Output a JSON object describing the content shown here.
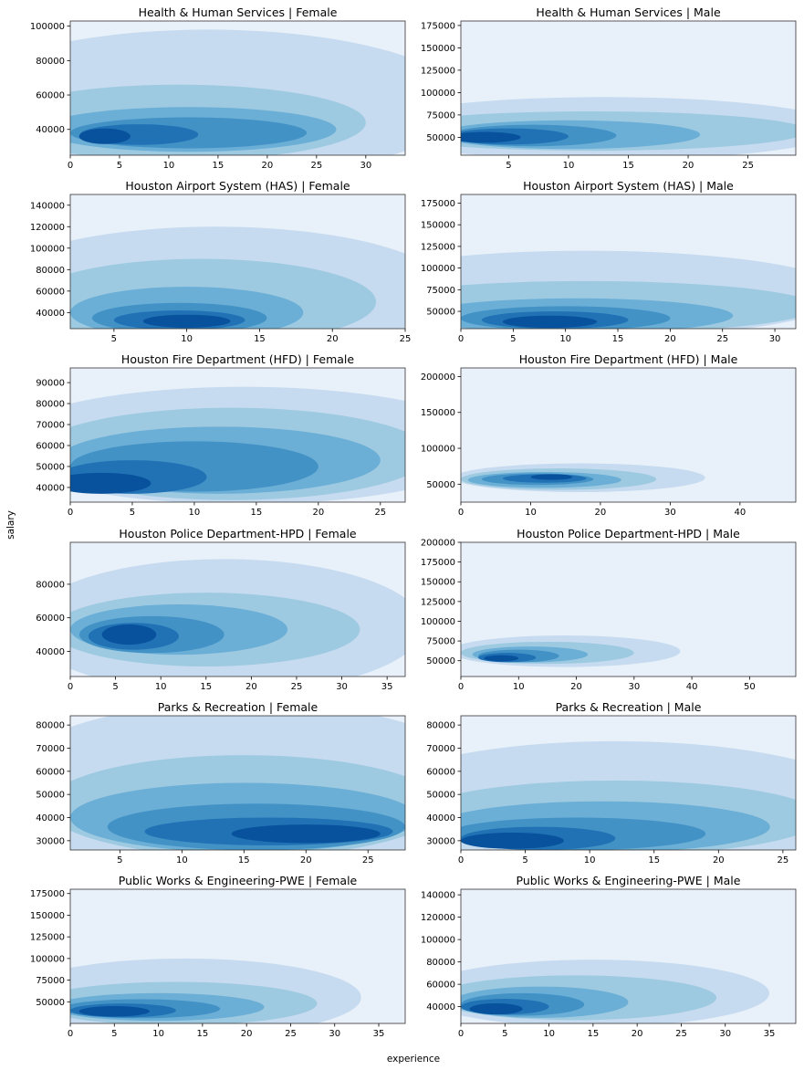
{
  "figure": {
    "xlabel": "experience",
    "ylabel": "salary",
    "cmap": [
      "#e6eff9",
      "#c6dbef",
      "#9ecae1",
      "#6baed6",
      "#4292c6",
      "#2171b5",
      "#08519c",
      "#08306b"
    ],
    "background": "#e8f0fa",
    "frame_color": "#333333"
  },
  "chart_data": [
    {
      "type": "kde",
      "title": "Health & Human Services | Female",
      "xlim": [
        0,
        34
      ],
      "ylim": [
        25000,
        103000
      ],
      "xticks": [
        0,
        5,
        10,
        15,
        20,
        25,
        30
      ],
      "yticks": [
        40000,
        60000,
        80000,
        100000
      ],
      "blobs": [
        {
          "cx": 14,
          "cy": 55000,
          "rx": 26,
          "ry": 43000
        },
        {
          "cx": 11,
          "cy": 44000,
          "rx": 19,
          "ry": 22000
        },
        {
          "cx": 12,
          "cy": 40000,
          "rx": 15,
          "ry": 13000
        },
        {
          "cx": 12,
          "cy": 38000,
          "rx": 12,
          "ry": 9000
        },
        {
          "cx": 7,
          "cy": 37000,
          "rx": 6,
          "ry": 6000
        },
        {
          "cx": 3.5,
          "cy": 36000,
          "rx": 2.6,
          "ry": 4500
        }
      ]
    },
    {
      "type": "kde",
      "title": "Health & Human Services | Male",
      "xlim": [
        1,
        29
      ],
      "ylim": [
        30000,
        180000
      ],
      "xticks": [
        5,
        10,
        15,
        20,
        25
      ],
      "yticks": [
        50000,
        75000,
        100000,
        125000,
        150000,
        175000
      ],
      "blobs": [
        {
          "cx": 13,
          "cy": 60000,
          "rx": 20,
          "ry": 35000
        },
        {
          "cx": 12,
          "cy": 57000,
          "rx": 18,
          "ry": 22000
        },
        {
          "cx": 10,
          "cy": 53000,
          "rx": 11,
          "ry": 16000
        },
        {
          "cx": 7,
          "cy": 52000,
          "rx": 7,
          "ry": 12000
        },
        {
          "cx": 5,
          "cy": 51000,
          "rx": 5,
          "ry": 9000
        },
        {
          "cx": 3,
          "cy": 50000,
          "rx": 3,
          "ry": 6000
        }
      ]
    },
    {
      "type": "kde",
      "title": "Houston Airport System (HAS) | Female",
      "xlim": [
        2,
        25
      ],
      "ylim": [
        25000,
        150000
      ],
      "xticks": [
        5,
        10,
        15,
        20,
        25
      ],
      "yticks": [
        40000,
        60000,
        80000,
        100000,
        120000,
        140000
      ],
      "blobs": [
        {
          "cx": 12,
          "cy": 60000,
          "rx": 16,
          "ry": 60000
        },
        {
          "cx": 11,
          "cy": 50000,
          "rx": 12,
          "ry": 40000
        },
        {
          "cx": 10,
          "cy": 40000,
          "rx": 8,
          "ry": 24000
        },
        {
          "cx": 9.5,
          "cy": 35000,
          "rx": 6,
          "ry": 14000
        },
        {
          "cx": 9.5,
          "cy": 33000,
          "rx": 4.5,
          "ry": 9000
        },
        {
          "cx": 10,
          "cy": 32000,
          "rx": 3,
          "ry": 6000
        }
      ]
    },
    {
      "type": "kde",
      "title": "Houston Airport System (HAS) | Male",
      "xlim": [
        0,
        32
      ],
      "ylim": [
        30000,
        185000
      ],
      "xticks": [
        0,
        5,
        10,
        15,
        20,
        25,
        30
      ],
      "yticks": [
        50000,
        75000,
        100000,
        125000,
        150000,
        175000
      ],
      "blobs": [
        {
          "cx": 12,
          "cy": 70000,
          "rx": 25,
          "ry": 50000
        },
        {
          "cx": 12,
          "cy": 55000,
          "rx": 22,
          "ry": 30000
        },
        {
          "cx": 11,
          "cy": 45000,
          "rx": 15,
          "ry": 20000
        },
        {
          "cx": 10,
          "cy": 42000,
          "rx": 10,
          "ry": 14000
        },
        {
          "cx": 9,
          "cy": 40000,
          "rx": 7,
          "ry": 10000
        },
        {
          "cx": 8.5,
          "cy": 38000,
          "rx": 4.5,
          "ry": 7000
        }
      ]
    },
    {
      "type": "kde",
      "title": "Houston Fire Department (HFD) | Female",
      "xlim": [
        0,
        27
      ],
      "ylim": [
        33000,
        97000
      ],
      "xticks": [
        0,
        5,
        10,
        15,
        20,
        25
      ],
      "yticks": [
        40000,
        50000,
        60000,
        70000,
        80000,
        90000
      ],
      "blobs": [
        {
          "cx": 14,
          "cy": 60000,
          "rx": 20,
          "ry": 28000
        },
        {
          "cx": 13,
          "cy": 56000,
          "rx": 16,
          "ry": 22000
        },
        {
          "cx": 12,
          "cy": 53000,
          "rx": 13,
          "ry": 16000
        },
        {
          "cx": 10,
          "cy": 50000,
          "rx": 10,
          "ry": 12000
        },
        {
          "cx": 5,
          "cy": 45000,
          "rx": 6,
          "ry": 8000
        },
        {
          "cx": 2.5,
          "cy": 42000,
          "rx": 4,
          "ry": 5000
        }
      ]
    },
    {
      "type": "kde",
      "title": "Houston Fire Department (HFD) | Male",
      "xlim": [
        0,
        48
      ],
      "ylim": [
        25000,
        212000
      ],
      "xticks": [
        0,
        10,
        20,
        30,
        40
      ],
      "yticks": [
        50000,
        100000,
        150000,
        200000
      ],
      "blobs": [
        {
          "cx": 17,
          "cy": 59000,
          "rx": 18,
          "ry": 20000
        },
        {
          "cx": 14,
          "cy": 57000,
          "rx": 14,
          "ry": 15000
        },
        {
          "cx": 12,
          "cy": 56000,
          "rx": 11,
          "ry": 11000
        },
        {
          "cx": 11,
          "cy": 57000,
          "rx": 8,
          "ry": 8000
        },
        {
          "cx": 12,
          "cy": 58000,
          "rx": 6,
          "ry": 6000
        },
        {
          "cx": 13,
          "cy": 60000,
          "rx": 3,
          "ry": 4000
        }
      ]
    },
    {
      "type": "kde",
      "title": "Houston Police Department-HPD | Female",
      "xlim": [
        0,
        37
      ],
      "ylim": [
        25000,
        105000
      ],
      "xticks": [
        0,
        5,
        10,
        15,
        20,
        25,
        30,
        35
      ],
      "yticks": [
        40000,
        60000,
        80000
      ],
      "blobs": [
        {
          "cx": 17,
          "cy": 55000,
          "rx": 22,
          "ry": 40000
        },
        {
          "cx": 15,
          "cy": 53000,
          "rx": 17,
          "ry": 22000
        },
        {
          "cx": 12,
          "cy": 53000,
          "rx": 12,
          "ry": 15000
        },
        {
          "cx": 9,
          "cy": 50000,
          "rx": 8,
          "ry": 11000
        },
        {
          "cx": 7,
          "cy": 49000,
          "rx": 5,
          "ry": 8000
        },
        {
          "cx": 6.5,
          "cy": 50000,
          "rx": 3,
          "ry": 6000
        }
      ]
    },
    {
      "type": "kde",
      "title": "Houston Police Department-HPD | Male",
      "xlim": [
        0,
        58
      ],
      "ylim": [
        30000,
        200000
      ],
      "xticks": [
        0,
        10,
        20,
        30,
        40,
        50
      ],
      "yticks": [
        50000,
        75000,
        100000,
        125000,
        150000,
        175000,
        200000
      ],
      "blobs": [
        {
          "cx": 18,
          "cy": 62000,
          "rx": 20,
          "ry": 20000
        },
        {
          "cx": 15,
          "cy": 60000,
          "rx": 15,
          "ry": 14000
        },
        {
          "cx": 12,
          "cy": 58000,
          "rx": 10,
          "ry": 10000
        },
        {
          "cx": 10,
          "cy": 56000,
          "rx": 7,
          "ry": 8000
        },
        {
          "cx": 8,
          "cy": 54000,
          "rx": 5,
          "ry": 6000
        },
        {
          "cx": 7,
          "cy": 53000,
          "rx": 3,
          "ry": 4000
        }
      ]
    },
    {
      "type": "kde",
      "title": "Parks & Recreation | Female",
      "xlim": [
        1,
        28
      ],
      "ylim": [
        26000,
        84000
      ],
      "xticks": [
        5,
        10,
        15,
        20,
        25
      ],
      "yticks": [
        30000,
        40000,
        50000,
        60000,
        70000,
        80000
      ],
      "blobs": [
        {
          "cx": 15,
          "cy": 52000,
          "rx": 20,
          "ry": 38000
        },
        {
          "cx": 15,
          "cy": 45000,
          "rx": 16,
          "ry": 22000
        },
        {
          "cx": 15,
          "cy": 40000,
          "rx": 14,
          "ry": 15000
        },
        {
          "cx": 16,
          "cy": 36000,
          "rx": 12,
          "ry": 10000
        },
        {
          "cx": 17,
          "cy": 34000,
          "rx": 10,
          "ry": 6000
        },
        {
          "cx": 20,
          "cy": 33000,
          "rx": 6,
          "ry": 4000
        }
      ]
    },
    {
      "type": "kde",
      "title": "Parks & Recreation | Male",
      "xlim": [
        0,
        26
      ],
      "ylim": [
        26000,
        84000
      ],
      "xticks": [
        0,
        5,
        10,
        15,
        20,
        25
      ],
      "yticks": [
        30000,
        40000,
        50000,
        60000,
        70000,
        80000
      ],
      "blobs": [
        {
          "cx": 12,
          "cy": 45000,
          "rx": 20,
          "ry": 28000
        },
        {
          "cx": 12,
          "cy": 40000,
          "rx": 16,
          "ry": 16000
        },
        {
          "cx": 11,
          "cy": 36000,
          "rx": 13,
          "ry": 11000
        },
        {
          "cx": 9,
          "cy": 33000,
          "rx": 10,
          "ry": 7000
        },
        {
          "cx": 6,
          "cy": 31000,
          "rx": 6,
          "ry": 5000
        },
        {
          "cx": 4,
          "cy": 30000,
          "rx": 4,
          "ry": 3500
        }
      ]
    },
    {
      "type": "kde",
      "title": "Public Works & Engineering-PWE | Female",
      "xlim": [
        0,
        38
      ],
      "ylim": [
        25000,
        180000
      ],
      "xticks": [
        0,
        5,
        10,
        15,
        20,
        25,
        30,
        35
      ],
      "yticks": [
        50000,
        75000,
        100000,
        125000,
        150000,
        175000
      ],
      "blobs": [
        {
          "cx": 13,
          "cy": 55000,
          "rx": 20,
          "ry": 45000
        },
        {
          "cx": 12,
          "cy": 48000,
          "rx": 16,
          "ry": 25000
        },
        {
          "cx": 10,
          "cy": 44000,
          "rx": 12,
          "ry": 16000
        },
        {
          "cx": 8,
          "cy": 42000,
          "rx": 9,
          "ry": 11000
        },
        {
          "cx": 6,
          "cy": 40000,
          "rx": 6,
          "ry": 8000
        },
        {
          "cx": 5,
          "cy": 39000,
          "rx": 4,
          "ry": 6000
        }
      ]
    },
    {
      "type": "kde",
      "title": "Public Works & Engineering-PWE | Male",
      "xlim": [
        0,
        38
      ],
      "ylim": [
        25000,
        145000
      ],
      "xticks": [
        0,
        5,
        10,
        15,
        20,
        25,
        30,
        35
      ],
      "yticks": [
        40000,
        60000,
        80000,
        100000,
        120000,
        140000
      ],
      "blobs": [
        {
          "cx": 15,
          "cy": 52000,
          "rx": 20,
          "ry": 30000
        },
        {
          "cx": 13,
          "cy": 48000,
          "rx": 16,
          "ry": 20000
        },
        {
          "cx": 9,
          "cy": 44000,
          "rx": 10,
          "ry": 14000
        },
        {
          "cx": 7,
          "cy": 42000,
          "rx": 7,
          "ry": 10000
        },
        {
          "cx": 5,
          "cy": 40000,
          "rx": 5,
          "ry": 7000
        },
        {
          "cx": 4,
          "cy": 38000,
          "rx": 3,
          "ry": 5000
        }
      ]
    }
  ]
}
